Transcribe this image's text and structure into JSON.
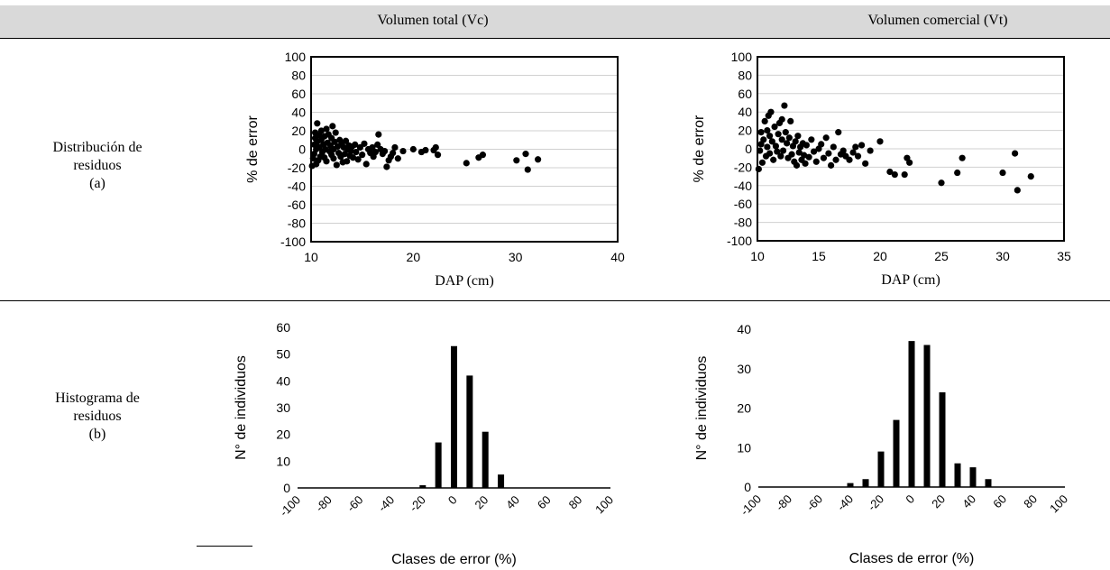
{
  "table": {
    "col_headers": [
      "Volumen total (Vc)",
      "Volumen comercial (Vt)"
    ],
    "row_labels": [
      [
        "Distribución de",
        "residuos",
        "(a)"
      ],
      [
        "Histograma de",
        "residuos",
        "(b)"
      ]
    ]
  },
  "chart_data": [
    {
      "type": "scatter",
      "title": "",
      "xlabel": "DAP (cm)",
      "ylabel": "% de error",
      "xlim": [
        10,
        40
      ],
      "ylim": [
        -100,
        100
      ],
      "xticks": [
        10,
        20,
        30,
        40
      ],
      "yticks": [
        100,
        80,
        60,
        40,
        20,
        0,
        -20,
        -40,
        -60,
        -80,
        -100
      ],
      "grid": true,
      "points": [
        [
          10.1,
          -18
        ],
        [
          10.2,
          -10
        ],
        [
          10.3,
          -5
        ],
        [
          10.3,
          5
        ],
        [
          10.4,
          12
        ],
        [
          10.4,
          18
        ],
        [
          10.5,
          -16
        ],
        [
          10.5,
          0
        ],
        [
          10.6,
          28
        ],
        [
          10.6,
          8
        ],
        [
          10.7,
          -12
        ],
        [
          10.8,
          15
        ],
        [
          10.8,
          2
        ],
        [
          10.9,
          -8
        ],
        [
          11.0,
          20
        ],
        [
          11.0,
          10
        ],
        [
          11.1,
          -3
        ],
        [
          11.2,
          5
        ],
        [
          11.3,
          14
        ],
        [
          11.3,
          -9
        ],
        [
          11.4,
          0
        ],
        [
          11.5,
          22
        ],
        [
          11.5,
          -13
        ],
        [
          11.6,
          7
        ],
        [
          11.7,
          16
        ],
        [
          11.8,
          -2
        ],
        [
          11.9,
          4
        ],
        [
          12.0,
          -6
        ],
        [
          12.0,
          12
        ],
        [
          12.1,
          25
        ],
        [
          12.2,
          0
        ],
        [
          12.2,
          -10
        ],
        [
          12.3,
          8
        ],
        [
          12.4,
          18
        ],
        [
          12.5,
          -17
        ],
        [
          12.6,
          3
        ],
        [
          12.7,
          -4
        ],
        [
          12.8,
          10
        ],
        [
          12.9,
          -8
        ],
        [
          13.0,
          6
        ],
        [
          13.1,
          -14
        ],
        [
          13.2,
          2
        ],
        [
          13.3,
          -5
        ],
        [
          13.4,
          9
        ],
        [
          13.5,
          -13
        ],
        [
          13.6,
          0
        ],
        [
          13.7,
          4
        ],
        [
          13.8,
          -7
        ],
        [
          13.9,
          -2
        ],
        [
          14.0,
          3
        ],
        [
          14.1,
          -9
        ],
        [
          14.3,
          5
        ],
        [
          14.4,
          -3
        ],
        [
          14.6,
          -11
        ],
        [
          14.8,
          2
        ],
        [
          15.0,
          -6
        ],
        [
          15.2,
          6
        ],
        [
          15.4,
          -16
        ],
        [
          15.6,
          0
        ],
        [
          15.8,
          -4
        ],
        [
          16.0,
          2
        ],
        [
          16.1,
          -8
        ],
        [
          16.3,
          -3
        ],
        [
          16.5,
          5
        ],
        [
          16.6,
          16
        ],
        [
          16.8,
          0
        ],
        [
          17.0,
          -5
        ],
        [
          17.2,
          -2
        ],
        [
          17.4,
          -19
        ],
        [
          17.6,
          -12
        ],
        [
          17.8,
          -8
        ],
        [
          18.0,
          -4
        ],
        [
          18.2,
          2
        ],
        [
          18.5,
          -10
        ],
        [
          19.0,
          -2
        ],
        [
          20.0,
          0
        ],
        [
          20.8,
          -3
        ],
        [
          21.2,
          -1
        ],
        [
          22.0,
          -1
        ],
        [
          22.2,
          2
        ],
        [
          22.4,
          -6
        ],
        [
          25.2,
          -15
        ],
        [
          26.4,
          -9
        ],
        [
          26.8,
          -6
        ],
        [
          30.1,
          -12
        ],
        [
          31.0,
          -5
        ],
        [
          31.2,
          -22
        ],
        [
          32.2,
          -11
        ]
      ]
    },
    {
      "type": "scatter",
      "title": "",
      "xlabel": "DAP (cm)",
      "ylabel": "% de error",
      "xlim": [
        10,
        35
      ],
      "ylim": [
        -100,
        100
      ],
      "xticks": [
        10,
        15,
        20,
        25,
        30,
        35
      ],
      "yticks": [
        100,
        80,
        60,
        40,
        20,
        0,
        -20,
        -40,
        -60,
        -80,
        -100
      ],
      "grid": true,
      "points": [
        [
          10.1,
          -22
        ],
        [
          10.2,
          -2
        ],
        [
          10.3,
          18
        ],
        [
          10.3,
          5
        ],
        [
          10.4,
          -15
        ],
        [
          10.5,
          10
        ],
        [
          10.6,
          30
        ],
        [
          10.7,
          -8
        ],
        [
          10.8,
          20
        ],
        [
          10.8,
          2
        ],
        [
          10.9,
          36
        ],
        [
          11.0,
          -5
        ],
        [
          11.0,
          14
        ],
        [
          11.1,
          40
        ],
        [
          11.2,
          8
        ],
        [
          11.3,
          -12
        ],
        [
          11.4,
          24
        ],
        [
          11.5,
          3
        ],
        [
          11.6,
          -3
        ],
        [
          11.7,
          16
        ],
        [
          11.8,
          28
        ],
        [
          11.9,
          -8
        ],
        [
          12.0,
          10
        ],
        [
          12.0,
          32
        ],
        [
          12.1,
          -2
        ],
        [
          12.2,
          47
        ],
        [
          12.3,
          18
        ],
        [
          12.4,
          6
        ],
        [
          12.5,
          -10
        ],
        [
          12.6,
          12
        ],
        [
          12.7,
          30
        ],
        [
          12.8,
          -6
        ],
        [
          12.9,
          3
        ],
        [
          13.0,
          -14
        ],
        [
          13.1,
          8
        ],
        [
          13.2,
          -18
        ],
        [
          13.3,
          14
        ],
        [
          13.4,
          -4
        ],
        [
          13.5,
          2
        ],
        [
          13.6,
          -12
        ],
        [
          13.7,
          6
        ],
        [
          13.8,
          -7
        ],
        [
          13.9,
          -16
        ],
        [
          14.0,
          4
        ],
        [
          14.2,
          -9
        ],
        [
          14.4,
          10
        ],
        [
          14.6,
          -3
        ],
        [
          14.8,
          -14
        ],
        [
          15.0,
          0
        ],
        [
          15.2,
          5
        ],
        [
          15.4,
          -10
        ],
        [
          15.6,
          12
        ],
        [
          15.8,
          -5
        ],
        [
          16.0,
          -18
        ],
        [
          16.2,
          2
        ],
        [
          16.4,
          -12
        ],
        [
          16.6,
          18
        ],
        [
          16.8,
          -6
        ],
        [
          17.0,
          -2
        ],
        [
          17.2,
          -8
        ],
        [
          17.5,
          -12
        ],
        [
          17.8,
          -4
        ],
        [
          18.0,
          2
        ],
        [
          18.2,
          -8
        ],
        [
          18.5,
          4
        ],
        [
          18.8,
          -16
        ],
        [
          19.2,
          -2
        ],
        [
          20.0,
          8
        ],
        [
          20.8,
          -25
        ],
        [
          21.2,
          -28
        ],
        [
          22.0,
          -28
        ],
        [
          22.2,
          -10
        ],
        [
          22.4,
          -15
        ],
        [
          25.0,
          -37
        ],
        [
          26.3,
          -26
        ],
        [
          26.7,
          -10
        ],
        [
          30.0,
          -26
        ],
        [
          31.0,
          -5
        ],
        [
          31.2,
          -45
        ],
        [
          32.3,
          -30
        ]
      ]
    },
    {
      "type": "bar",
      "title": "",
      "xlabel": "Clases de error (%)",
      "ylabel": "N° de individuos",
      "categories": [
        "-100",
        "-90",
        "-80",
        "-70",
        "-60",
        "-50",
        "-40",
        "-30",
        "-20",
        "-10",
        "0",
        "10",
        "20",
        "30",
        "40",
        "50",
        "60",
        "70",
        "80",
        "90",
        "100"
      ],
      "tick_labels": [
        "-100",
        "-80",
        "-60",
        "-40",
        "-20",
        "0",
        "20",
        "40",
        "60",
        "80",
        "100"
      ],
      "values": [
        0,
        0,
        0,
        0,
        0,
        0,
        0,
        0,
        1,
        17,
        53,
        42,
        21,
        5,
        0,
        0,
        0,
        0,
        0,
        0,
        0
      ],
      "ylim": [
        0,
        60
      ],
      "yticks": [
        0,
        10,
        20,
        30,
        40,
        50,
        60
      ],
      "grid": false
    },
    {
      "type": "bar",
      "title": "",
      "xlabel": "Clases de error (%)",
      "ylabel": "N° de individuos",
      "categories": [
        "-100",
        "-90",
        "-80",
        "-70",
        "-60",
        "-50",
        "-40",
        "-30",
        "-20",
        "-10",
        "0",
        "10",
        "20",
        "30",
        "40",
        "50",
        "60",
        "70",
        "80",
        "90",
        "100"
      ],
      "tick_labels": [
        "-100",
        "-80",
        "-60",
        "-40",
        "-20",
        "0",
        "20",
        "40",
        "60",
        "80",
        "100"
      ],
      "values": [
        0,
        0,
        0,
        0,
        0,
        0,
        1,
        2,
        9,
        17,
        37,
        36,
        24,
        6,
        5,
        2,
        0,
        0,
        0,
        0,
        0
      ],
      "ylim": [
        0,
        40
      ],
      "yticks": [
        0,
        10,
        20,
        30,
        40
      ],
      "grid": false
    }
  ]
}
